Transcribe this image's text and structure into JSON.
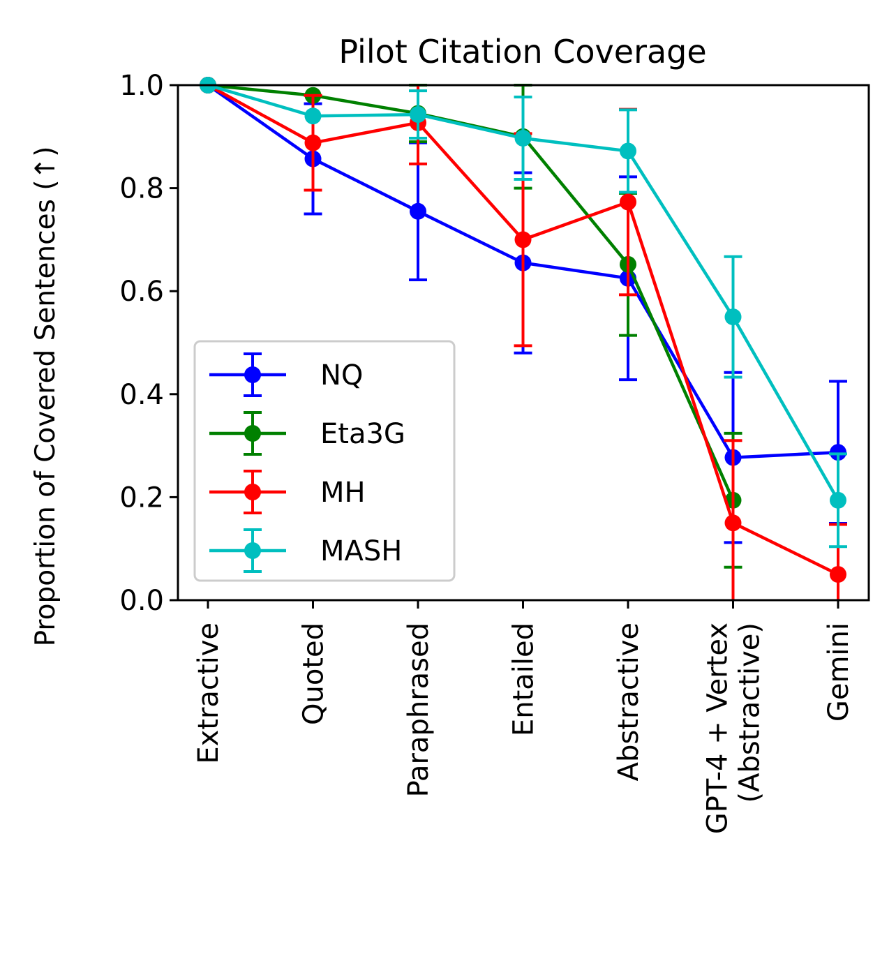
{
  "chart_data": {
    "type": "line",
    "title": "Pilot Citation Coverage",
    "xlabel": "",
    "ylabel": "Proportion of Covered Sentences (↑)",
    "ylim": [
      0,
      1
    ],
    "yticks": [
      "0.0",
      "0.2",
      "0.4",
      "0.6",
      "0.8",
      "1.0"
    ],
    "categories": [
      [
        "Extractive"
      ],
      [
        "Quoted"
      ],
      [
        "Paraphrased"
      ],
      [
        "Entailed"
      ],
      [
        "Abstractive"
      ],
      [
        "GPT-4 + Vertex",
        "(Abstractive)"
      ],
      [
        "Gemini"
      ]
    ],
    "grid": false,
    "legend_position": "lower-left",
    "series": [
      {
        "name": "NQ",
        "color": "#0000ff",
        "values": [
          1.0,
          0.857,
          0.755,
          0.655,
          0.625,
          0.277,
          0.287
        ],
        "errors": [
          0.0,
          0.107,
          0.133,
          0.175,
          0.197,
          0.165,
          0.138
        ]
      },
      {
        "name": "Eta3G",
        "color": "#008000",
        "values": [
          1.0,
          0.98,
          0.945,
          0.9,
          0.652,
          0.194,
          null
        ],
        "errors": [
          0.0,
          0.0,
          0.055,
          0.1,
          0.138,
          0.13,
          null
        ]
      },
      {
        "name": "MH",
        "color": "#ff0000",
        "values": [
          1.0,
          0.888,
          0.927,
          0.7,
          0.773,
          0.15,
          0.05
        ],
        "errors": [
          0.0,
          0.092,
          0.08,
          0.206,
          0.18,
          0.16,
          0.097
        ]
      },
      {
        "name": "MASH",
        "color": "#00bfbf",
        "values": [
          1.0,
          0.94,
          0.943,
          0.897,
          0.872,
          0.55,
          0.194
        ],
        "errors": [
          0.0,
          0.0,
          0.046,
          0.08,
          0.08,
          0.117,
          0.09
        ]
      }
    ]
  }
}
